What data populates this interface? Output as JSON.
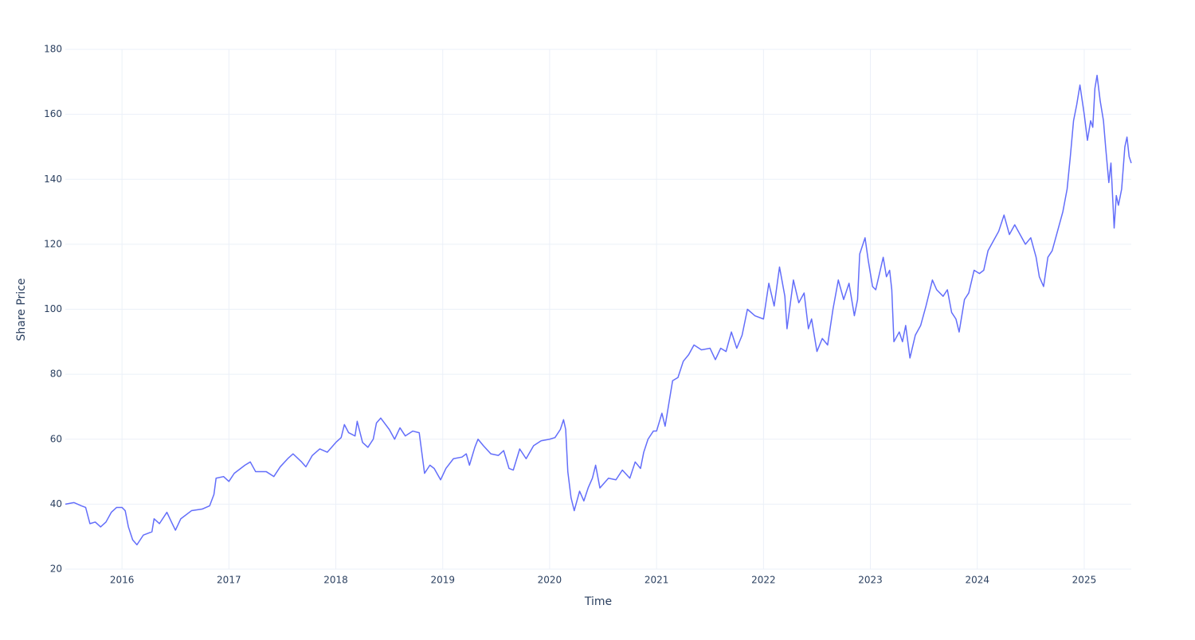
{
  "chart_data": {
    "type": "line",
    "x_label": "Time",
    "y_label": "Share Price",
    "xlim": [
      2015.47,
      2025.44
    ],
    "ylim": [
      20,
      180
    ],
    "xticks": [
      2016,
      2017,
      2018,
      2019,
      2020,
      2021,
      2022,
      2023,
      2024,
      2025
    ],
    "yticks": [
      20,
      40,
      60,
      80,
      100,
      120,
      140,
      160,
      180
    ],
    "grid": true,
    "series": [
      {
        "color": "#636efa",
        "x": [
          2015.47,
          2015.55,
          2015.62,
          2015.66,
          2015.7,
          2015.75,
          2015.8,
          2015.85,
          2015.9,
          2015.95,
          2016.0,
          2016.03,
          2016.06,
          2016.1,
          2016.14,
          2016.2,
          2016.28,
          2016.3,
          2016.35,
          2016.42,
          2016.47,
          2016.5,
          2016.55,
          2016.65,
          2016.75,
          2016.82,
          2016.86,
          2016.88,
          2016.95,
          2017.0,
          2017.05,
          2017.15,
          2017.2,
          2017.25,
          2017.35,
          2017.42,
          2017.48,
          2017.55,
          2017.6,
          2017.68,
          2017.72,
          2017.78,
          2017.85,
          2017.92,
          2018.0,
          2018.05,
          2018.08,
          2018.12,
          2018.18,
          2018.2,
          2018.25,
          2018.3,
          2018.35,
          2018.38,
          2018.42,
          2018.5,
          2018.55,
          2018.6,
          2018.65,
          2018.72,
          2018.78,
          2018.8,
          2018.83,
          2018.88,
          2018.92,
          2018.98,
          2019.03,
          2019.1,
          2019.18,
          2019.22,
          2019.25,
          2019.3,
          2019.33,
          2019.38,
          2019.45,
          2019.52,
          2019.57,
          2019.62,
          2019.66,
          2019.72,
          2019.78,
          2019.85,
          2019.92,
          2020.0,
          2020.05,
          2020.1,
          2020.13,
          2020.15,
          2020.17,
          2020.2,
          2020.23,
          2020.28,
          2020.32,
          2020.36,
          2020.4,
          2020.43,
          2020.47,
          2020.55,
          2020.62,
          2020.68,
          2020.75,
          2020.8,
          2020.85,
          2020.88,
          2020.92,
          2020.97,
          2021.0,
          2021.05,
          2021.08,
          2021.12,
          2021.15,
          2021.2,
          2021.25,
          2021.3,
          2021.35,
          2021.42,
          2021.5,
          2021.55,
          2021.6,
          2021.65,
          2021.7,
          2021.75,
          2021.8,
          2021.85,
          2021.92,
          2022.0,
          2022.05,
          2022.1,
          2022.15,
          2022.2,
          2022.22,
          2022.28,
          2022.33,
          2022.38,
          2022.42,
          2022.45,
          2022.5,
          2022.55,
          2022.6,
          2022.65,
          2022.7,
          2022.75,
          2022.8,
          2022.85,
          2022.88,
          2022.9,
          2022.95,
          2022.98,
          2023.02,
          2023.05,
          2023.12,
          2023.15,
          2023.18,
          2023.2,
          2023.22,
          2023.27,
          2023.3,
          2023.33,
          2023.37,
          2023.42,
          2023.47,
          2023.52,
          2023.58,
          2023.62,
          2023.68,
          2023.72,
          2023.76,
          2023.8,
          2023.83,
          2023.88,
          2023.92,
          2023.97,
          2024.02,
          2024.06,
          2024.1,
          2024.15,
          2024.2,
          2024.25,
          2024.3,
          2024.35,
          2024.4,
          2024.45,
          2024.5,
          2024.55,
          2024.58,
          2024.62,
          2024.66,
          2024.7,
          2024.75,
          2024.8,
          2024.84,
          2024.87,
          2024.9,
          2024.93,
          2024.96,
          2025.0,
          2025.03,
          2025.06,
          2025.08,
          2025.1,
          2025.12,
          2025.15,
          2025.18,
          2025.2,
          2025.23,
          2025.25,
          2025.28,
          2025.3,
          2025.32,
          2025.35,
          2025.38,
          2025.4,
          2025.42,
          2025.44
        ],
        "values": [
          40,
          40.5,
          39.5,
          39,
          34,
          34.5,
          33,
          34.5,
          37.5,
          39,
          39,
          38,
          33,
          29,
          27.5,
          30.5,
          31.5,
          35.5,
          34,
          37.5,
          34,
          32,
          35.5,
          38,
          38.5,
          39.5,
          43,
          48,
          48.5,
          47,
          49.5,
          52,
          53,
          50,
          50,
          48.5,
          51.5,
          54,
          55.5,
          53,
          51.5,
          55,
          57,
          56,
          59,
          60.5,
          64.5,
          62,
          61,
          65.5,
          59,
          57.5,
          60,
          65,
          66.5,
          63,
          60,
          63.5,
          61,
          62.5,
          62,
          57,
          49.5,
          52,
          51,
          47.5,
          51,
          54,
          54.5,
          55.5,
          52,
          57.5,
          60,
          58,
          55.5,
          55,
          56.5,
          51,
          50.5,
          57,
          54,
          58,
          59.5,
          60,
          60.5,
          63,
          66,
          63,
          50,
          42,
          38,
          44,
          41,
          45,
          48,
          52,
          45,
          48,
          47.5,
          50.5,
          48,
          53,
          51,
          56,
          60,
          62.5,
          62.5,
          68,
          64,
          72,
          78,
          79,
          84,
          86,
          89,
          87.5,
          88,
          84.5,
          88,
          87,
          93,
          88,
          92,
          100,
          98,
          97,
          108,
          101,
          113,
          104,
          94,
          109,
          102,
          105,
          94,
          97,
          87,
          91,
          89,
          100,
          109,
          103,
          108,
          98,
          103,
          117,
          122,
          115,
          107,
          106,
          116,
          110,
          112,
          106,
          90,
          93,
          90,
          95,
          85,
          92,
          95,
          101,
          109,
          106,
          104,
          106,
          99,
          97,
          93,
          103,
          105,
          112,
          111,
          112,
          118,
          121,
          124,
          129,
          123,
          126,
          123,
          120,
          122,
          116,
          110,
          107,
          116,
          118,
          124,
          130,
          137,
          147,
          158,
          163,
          169,
          160,
          152,
          158,
          156,
          168,
          172,
          164,
          158,
          150,
          139,
          145,
          125,
          135,
          132,
          137,
          150,
          153,
          147,
          145
        ]
      }
    ]
  }
}
